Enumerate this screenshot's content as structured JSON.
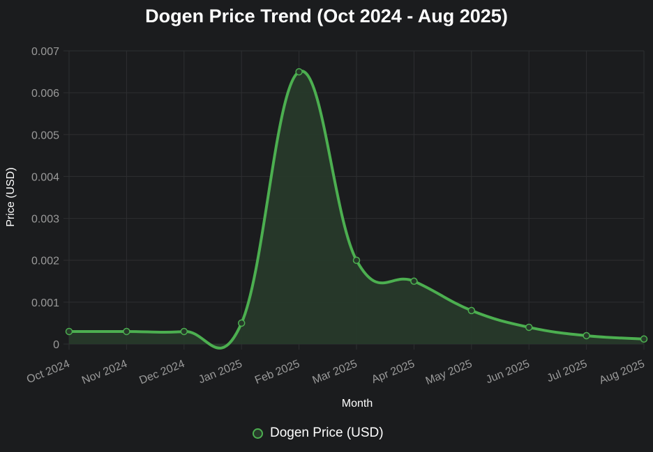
{
  "chart_data": {
    "type": "line",
    "title": "Dogen Price Trend (Oct 2024 - Aug 2025)",
    "xlabel": "Month",
    "ylabel": "Price (USD)",
    "categories": [
      "Oct 2024",
      "Nov 2024",
      "Dec 2024",
      "Jan 2025",
      "Feb 2025",
      "Mar 2025",
      "Apr 2025",
      "May 2025",
      "Jun 2025",
      "Jul 2025",
      "Aug 2025"
    ],
    "series": [
      {
        "name": "Dogen Price (USD)",
        "values": [
          0.0003,
          0.0003,
          0.0003,
          0.0005,
          0.0065,
          0.002,
          0.0015,
          0.0008,
          0.0004,
          0.0002,
          0.00012
        ]
      }
    ],
    "ylim": [
      0,
      0.007
    ],
    "yticks": [
      "0",
      "0.001",
      "0.002",
      "0.003",
      "0.004",
      "0.005",
      "0.006",
      "0.007"
    ],
    "grid": true,
    "legend_position": "bottom",
    "colors": {
      "line": "#4caf50",
      "fill": "#27392a",
      "background": "#1b1c1e"
    }
  }
}
